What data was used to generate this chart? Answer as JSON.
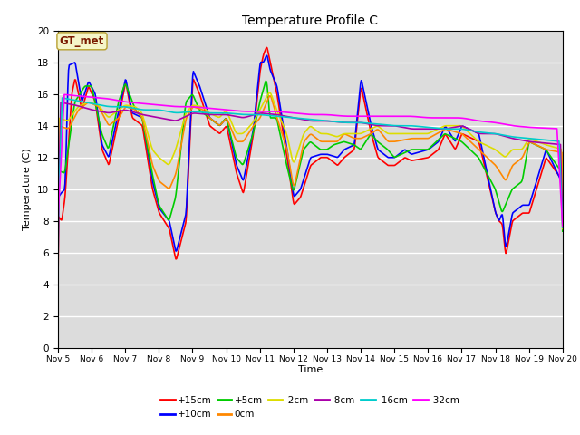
{
  "title": "Temperature Profile C",
  "xlabel": "Time",
  "ylabel": "Temperature (C)",
  "ylim": [
    0,
    20
  ],
  "xlim_days": [
    5,
    20
  ],
  "x_tick_labels": [
    "Nov 5",
    "Nov 6",
    "Nov 7",
    "Nov 8",
    "Nov 9",
    "Nov 10",
    "Nov 11",
    "Nov 12",
    "Nov 13",
    "Nov 14",
    "Nov 15",
    "Nov 16",
    "Nov 17",
    "Nov 18",
    "Nov 19",
    "Nov 20"
  ],
  "annotation_text": "GT_met",
  "bg_color": "#dcdcdc",
  "fig_color": "#ffffff",
  "series": {
    "+15cm": {
      "color": "#ff0000",
      "lw": 1.2
    },
    "+10cm": {
      "color": "#0000ff",
      "lw": 1.2
    },
    "+5cm": {
      "color": "#00cc00",
      "lw": 1.2
    },
    "0cm": {
      "color": "#ff8800",
      "lw": 1.2
    },
    "-2cm": {
      "color": "#dddd00",
      "lw": 1.2
    },
    "-8cm": {
      "color": "#aa00aa",
      "lw": 1.2
    },
    "-16cm": {
      "color": "#00cccc",
      "lw": 1.2
    },
    "-32cm": {
      "color": "#ff00ff",
      "lw": 1.2
    }
  }
}
